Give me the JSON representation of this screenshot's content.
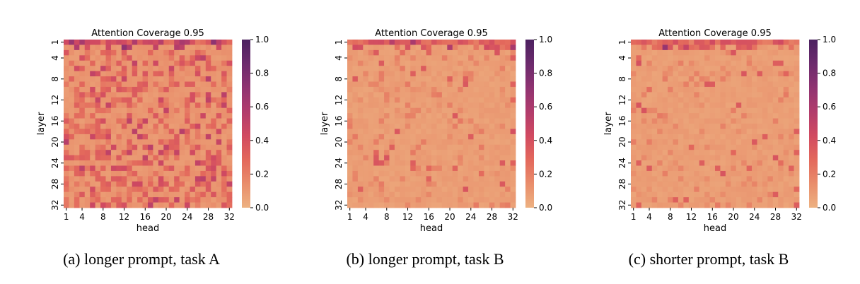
{
  "figure": {
    "panels": [
      {
        "caption": "(a) longer prompt, task A",
        "intensity": "high"
      },
      {
        "caption": "(b) longer prompt, task B",
        "intensity": "low"
      },
      {
        "caption": "(c) shorter prompt, task B",
        "intensity": "low"
      }
    ]
  },
  "chart_data": [
    {
      "type": "heatmap",
      "title": "Attention Coverage 0.95",
      "xlabel": "head",
      "ylabel": "layer",
      "x_ticks": [
        "1",
        "4",
        "8",
        "12",
        "16",
        "20",
        "24",
        "28",
        "32"
      ],
      "y_ticks": [
        "1",
        "4",
        "8",
        "12",
        "16",
        "20",
        "24",
        "28",
        "32"
      ],
      "x_range": [
        1,
        32
      ],
      "y_range": [
        1,
        32
      ],
      "colorbar": {
        "range": [
          0.0,
          1.0
        ],
        "ticks": [
          "0.0",
          "0.2",
          "0.4",
          "0.6",
          "0.8",
          "1.0"
        ]
      },
      "colormap": [
        "#edb181",
        "#e98d6b",
        "#e3685c",
        "#d14a61",
        "#b13c6c",
        "#8f3371",
        "#6c2b6d",
        "#4c2160"
      ],
      "estimated_value_range": [
        0.05,
        0.65
      ],
      "grid": false,
      "legend": "colorbar-right"
    },
    {
      "type": "heatmap",
      "title": "Attention Coverage 0.95",
      "xlabel": "head",
      "ylabel": "layer",
      "x_ticks": [
        "1",
        "4",
        "8",
        "12",
        "16",
        "20",
        "24",
        "28",
        "32"
      ],
      "y_ticks": [
        "1",
        "4",
        "8",
        "12",
        "16",
        "20",
        "24",
        "28",
        "32"
      ],
      "x_range": [
        1,
        32
      ],
      "y_range": [
        1,
        32
      ],
      "colorbar": {
        "range": [
          0.0,
          1.0
        ],
        "ticks": [
          "0.0",
          "0.2",
          "0.4",
          "0.6",
          "0.8",
          "1.0"
        ]
      },
      "colormap": [
        "#edb181",
        "#e98d6b",
        "#e3685c",
        "#d14a61",
        "#b13c6c",
        "#8f3371",
        "#6c2b6d",
        "#4c2160"
      ],
      "estimated_value_range": [
        0.02,
        0.6
      ],
      "grid": false,
      "legend": "colorbar-right"
    },
    {
      "type": "heatmap",
      "title": "Attention Coverage 0.95",
      "xlabel": "head",
      "ylabel": "layer",
      "x_ticks": [
        "1",
        "4",
        "8",
        "12",
        "16",
        "20",
        "24",
        "28",
        "32"
      ],
      "y_ticks": [
        "1",
        "4",
        "8",
        "12",
        "16",
        "20",
        "24",
        "28",
        "32"
      ],
      "x_range": [
        1,
        32
      ],
      "y_range": [
        1,
        32
      ],
      "colorbar": {
        "range": [
          0.0,
          1.0
        ],
        "ticks": [
          "0.0",
          "0.2",
          "0.4",
          "0.6",
          "0.8",
          "1.0"
        ]
      },
      "colormap": [
        "#edb181",
        "#e98d6b",
        "#e3685c",
        "#d14a61",
        "#b13c6c",
        "#8f3371",
        "#6c2b6d",
        "#4c2160"
      ],
      "estimated_value_range": [
        0.02,
        0.6
      ],
      "grid": false,
      "legend": "colorbar-right"
    }
  ]
}
